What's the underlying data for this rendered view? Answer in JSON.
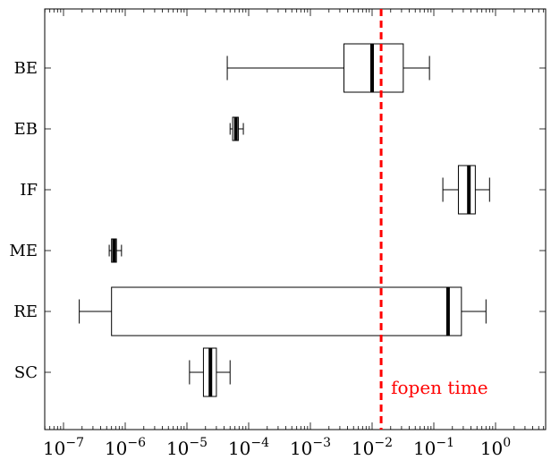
{
  "chart_data": {
    "type": "boxplot",
    "orientation": "horizontal",
    "x_scale": "log",
    "xlim": [
      1.5e-07,
      3
    ],
    "x_ticks": [
      {
        "value": 1e-07,
        "base": "10",
        "exp": "−7"
      },
      {
        "value": 1e-06,
        "base": "10",
        "exp": "−6"
      },
      {
        "value": 1e-05,
        "base": "10",
        "exp": "−5"
      },
      {
        "value": 0.0001,
        "base": "10",
        "exp": "−4"
      },
      {
        "value": 0.001,
        "base": "10",
        "exp": "−3"
      },
      {
        "value": 0.01,
        "base": "10",
        "exp": "−2"
      },
      {
        "value": 0.1,
        "base": "10",
        "exp": "−1"
      },
      {
        "value": 1,
        "base": "10",
        "exp": "0"
      }
    ],
    "grid": false,
    "categories": [
      "BE",
      "EB",
      "IF",
      "ME",
      "RE",
      "SC"
    ],
    "boxes": [
      {
        "label": "BE",
        "whisker_low": 4.5e-05,
        "q1": 0.0035,
        "median": 0.01,
        "q3": 0.032,
        "whisker_high": 0.085
      },
      {
        "label": "EB",
        "whisker_low": 5e-05,
        "q1": 5.5e-05,
        "median": 6.2e-05,
        "q3": 6.8e-05,
        "whisker_high": 8.2e-05
      },
      {
        "label": "IF",
        "whisker_low": 0.14,
        "q1": 0.25,
        "median": 0.37,
        "q3": 0.47,
        "whisker_high": 0.8
      },
      {
        "label": "ME",
        "whisker_low": 5.5e-07,
        "q1": 6e-07,
        "median": 6.6e-07,
        "q3": 7.2e-07,
        "whisker_high": 8.7e-07
      },
      {
        "label": "RE",
        "whisker_low": 1.8e-07,
        "q1": 6e-07,
        "median": 0.17,
        "q3": 0.28,
        "whisker_high": 0.7
      },
      {
        "label": "SC",
        "whisker_low": 1.1e-05,
        "q1": 1.85e-05,
        "median": 2.4e-05,
        "q3": 3e-05,
        "whisker_high": 5e-05
      }
    ],
    "reference_line": {
      "value": 0.014,
      "label": "fopen time",
      "color": "#ff0000",
      "style": "dashed"
    }
  }
}
